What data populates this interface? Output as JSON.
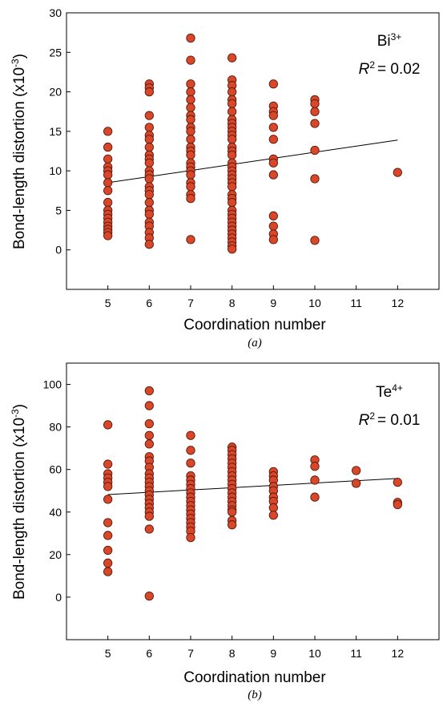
{
  "colors": {
    "point_fill": "#d9472b",
    "point_stroke": "#5a1a0a",
    "line": "#000000"
  },
  "chart_data": [
    {
      "type": "scatter",
      "panel_label": "(a)",
      "ion": "Bi",
      "ion_charge": "3+",
      "r2_symbol": "R",
      "r2_exp": "2",
      "r2_value": "= 0.02",
      "xlabel": "Coordination number",
      "ylabel_main": "Bond-length distortion (x10",
      "ylabel_exp": "-3",
      "ylabel_close": ")",
      "xlim": [
        4,
        13
      ],
      "ylim": [
        -5,
        30
      ],
      "xticks": [
        5,
        6,
        7,
        8,
        9,
        10,
        11,
        12
      ],
      "yticks": [
        0,
        5,
        10,
        15,
        20,
        25,
        30
      ],
      "trendline": {
        "x": [
          5,
          12
        ],
        "y": [
          8.5,
          13.9
        ]
      },
      "points": [
        [
          5,
          15
        ],
        [
          5,
          13
        ],
        [
          5,
          11.5
        ],
        [
          5,
          10.5
        ],
        [
          5,
          10
        ],
        [
          5,
          9.5
        ],
        [
          5,
          8.5
        ],
        [
          5,
          7.5
        ],
        [
          5,
          6
        ],
        [
          5,
          5
        ],
        [
          5,
          4.5
        ],
        [
          5,
          4
        ],
        [
          5,
          3.5
        ],
        [
          5,
          3
        ],
        [
          5,
          2.6
        ],
        [
          5,
          2.2
        ],
        [
          5,
          1.8
        ],
        [
          6,
          21
        ],
        [
          6,
          20.5
        ],
        [
          6,
          20
        ],
        [
          6,
          17
        ],
        [
          6,
          15.5
        ],
        [
          6,
          14.5
        ],
        [
          6,
          14
        ],
        [
          6,
          13
        ],
        [
          6,
          12
        ],
        [
          6,
          11.5
        ],
        [
          6,
          11
        ],
        [
          6,
          10
        ],
        [
          6,
          9.5
        ],
        [
          6,
          9
        ],
        [
          6,
          8
        ],
        [
          6,
          7.5
        ],
        [
          6,
          7
        ],
        [
          6,
          6
        ],
        [
          6,
          5
        ],
        [
          6,
          4.5
        ],
        [
          6,
          3.5
        ],
        [
          6,
          3
        ],
        [
          6,
          2.2
        ],
        [
          6,
          1.5
        ],
        [
          6,
          0.7
        ],
        [
          7,
          26.8
        ],
        [
          7,
          24
        ],
        [
          7,
          21
        ],
        [
          7,
          20
        ],
        [
          7,
          19
        ],
        [
          7,
          18
        ],
        [
          7,
          17
        ],
        [
          7,
          16.5
        ],
        [
          7,
          15.5
        ],
        [
          7,
          15
        ],
        [
          7,
          14
        ],
        [
          7,
          13
        ],
        [
          7,
          12.5
        ],
        [
          7,
          12
        ],
        [
          7,
          11
        ],
        [
          7,
          10.5
        ],
        [
          7,
          10
        ],
        [
          7,
          9.5
        ],
        [
          7,
          8.5
        ],
        [
          7,
          8
        ],
        [
          7,
          7
        ],
        [
          7,
          6.5
        ],
        [
          7,
          1.3
        ],
        [
          8,
          24.3
        ],
        [
          8,
          21.5
        ],
        [
          8,
          20.8
        ],
        [
          8,
          20
        ],
        [
          8,
          19
        ],
        [
          8,
          18.5
        ],
        [
          8,
          17.5
        ],
        [
          8,
          16.5
        ],
        [
          8,
          16
        ],
        [
          8,
          15.5
        ],
        [
          8,
          15
        ],
        [
          8,
          14.5
        ],
        [
          8,
          14
        ],
        [
          8,
          13
        ],
        [
          8,
          12.5
        ],
        [
          8,
          12
        ],
        [
          8,
          11
        ],
        [
          8,
          10.5
        ],
        [
          8,
          10
        ],
        [
          8,
          9.5
        ],
        [
          8,
          9
        ],
        [
          8,
          8.5
        ],
        [
          8,
          8
        ],
        [
          8,
          7
        ],
        [
          8,
          6.5
        ],
        [
          8,
          6
        ],
        [
          8,
          5
        ],
        [
          8,
          4.5
        ],
        [
          8,
          4
        ],
        [
          8,
          3.5
        ],
        [
          8,
          3
        ],
        [
          8,
          2.5
        ],
        [
          8,
          2
        ],
        [
          8,
          1.5
        ],
        [
          8,
          1
        ],
        [
          8,
          0.5
        ],
        [
          8,
          0.1
        ],
        [
          9,
          21
        ],
        [
          9,
          18.2
        ],
        [
          9,
          17.5
        ],
        [
          9,
          17
        ],
        [
          9,
          15.5
        ],
        [
          9,
          14
        ],
        [
          9,
          11.5
        ],
        [
          9,
          11
        ],
        [
          9,
          9.5
        ],
        [
          9,
          4.3
        ],
        [
          9,
          3
        ],
        [
          9,
          2
        ],
        [
          9,
          1.3
        ],
        [
          10,
          19
        ],
        [
          10,
          18.5
        ],
        [
          10,
          17.5
        ],
        [
          10,
          16
        ],
        [
          10,
          12.6
        ],
        [
          10,
          9
        ],
        [
          10,
          1.2
        ],
        [
          12,
          9.8
        ]
      ]
    },
    {
      "type": "scatter",
      "panel_label": "(b)",
      "ion": "Te",
      "ion_charge": "4+",
      "r2_symbol": "R",
      "r2_exp": "2",
      "r2_value": "= 0.01",
      "xlabel": "Coordination number",
      "ylabel_main": "Bond-length distortion (x10",
      "ylabel_exp": "-3",
      "ylabel_close": ")",
      "xlim": [
        4,
        13
      ],
      "ylim": [
        -20,
        110
      ],
      "xticks": [
        5,
        6,
        7,
        8,
        9,
        10,
        11,
        12
      ],
      "yticks": [
        0,
        20,
        40,
        60,
        80,
        100
      ],
      "trendline": {
        "x": [
          5,
          12
        ],
        "y": [
          48.2,
          55.8
        ]
      },
      "points": [
        [
          5,
          81
        ],
        [
          5,
          62.5
        ],
        [
          5,
          58
        ],
        [
          5,
          56
        ],
        [
          5,
          54
        ],
        [
          5,
          52
        ],
        [
          5,
          46
        ],
        [
          5,
          35
        ],
        [
          5,
          29
        ],
        [
          5,
          22
        ],
        [
          5,
          16
        ],
        [
          5,
          12
        ],
        [
          6,
          97
        ],
        [
          6,
          90
        ],
        [
          6,
          81.5
        ],
        [
          6,
          76
        ],
        [
          6,
          72
        ],
        [
          6,
          66
        ],
        [
          6,
          64
        ],
        [
          6,
          61
        ],
        [
          6,
          58
        ],
        [
          6,
          56
        ],
        [
          6,
          54
        ],
        [
          6,
          52
        ],
        [
          6,
          50
        ],
        [
          6,
          48
        ],
        [
          6,
          46
        ],
        [
          6,
          44
        ],
        [
          6,
          42
        ],
        [
          6,
          40
        ],
        [
          6,
          38
        ],
        [
          6,
          32
        ],
        [
          6,
          0.5
        ],
        [
          7,
          76
        ],
        [
          7,
          69
        ],
        [
          7,
          63
        ],
        [
          7,
          57
        ],
        [
          7,
          55
        ],
        [
          7,
          53
        ],
        [
          7,
          51
        ],
        [
          7,
          49
        ],
        [
          7,
          47
        ],
        [
          7,
          45
        ],
        [
          7,
          43
        ],
        [
          7,
          41
        ],
        [
          7,
          39
        ],
        [
          7,
          37
        ],
        [
          7,
          35
        ],
        [
          7,
          33
        ],
        [
          7,
          31
        ],
        [
          7,
          28
        ],
        [
          8,
          70.5
        ],
        [
          8,
          69
        ],
        [
          8,
          67
        ],
        [
          8,
          65
        ],
        [
          8,
          63
        ],
        [
          8,
          61
        ],
        [
          8,
          59
        ],
        [
          8,
          57
        ],
        [
          8,
          55
        ],
        [
          8,
          53
        ],
        [
          8,
          51
        ],
        [
          8,
          49
        ],
        [
          8,
          47
        ],
        [
          8,
          45
        ],
        [
          8,
          43
        ],
        [
          8,
          41
        ],
        [
          8,
          40
        ],
        [
          8,
          36
        ],
        [
          8,
          34
        ],
        [
          9,
          59
        ],
        [
          9,
          57
        ],
        [
          9,
          55
        ],
        [
          9,
          52
        ],
        [
          9,
          50
        ],
        [
          9,
          47
        ],
        [
          9,
          45
        ],
        [
          9,
          42
        ],
        [
          9,
          38.5
        ],
        [
          10,
          64.5
        ],
        [
          10,
          61.5
        ],
        [
          10,
          55
        ],
        [
          10,
          47
        ],
        [
          11,
          59.5
        ],
        [
          11,
          53.5
        ],
        [
          12,
          54
        ],
        [
          12,
          44.5
        ],
        [
          12,
          43.5
        ]
      ]
    }
  ]
}
